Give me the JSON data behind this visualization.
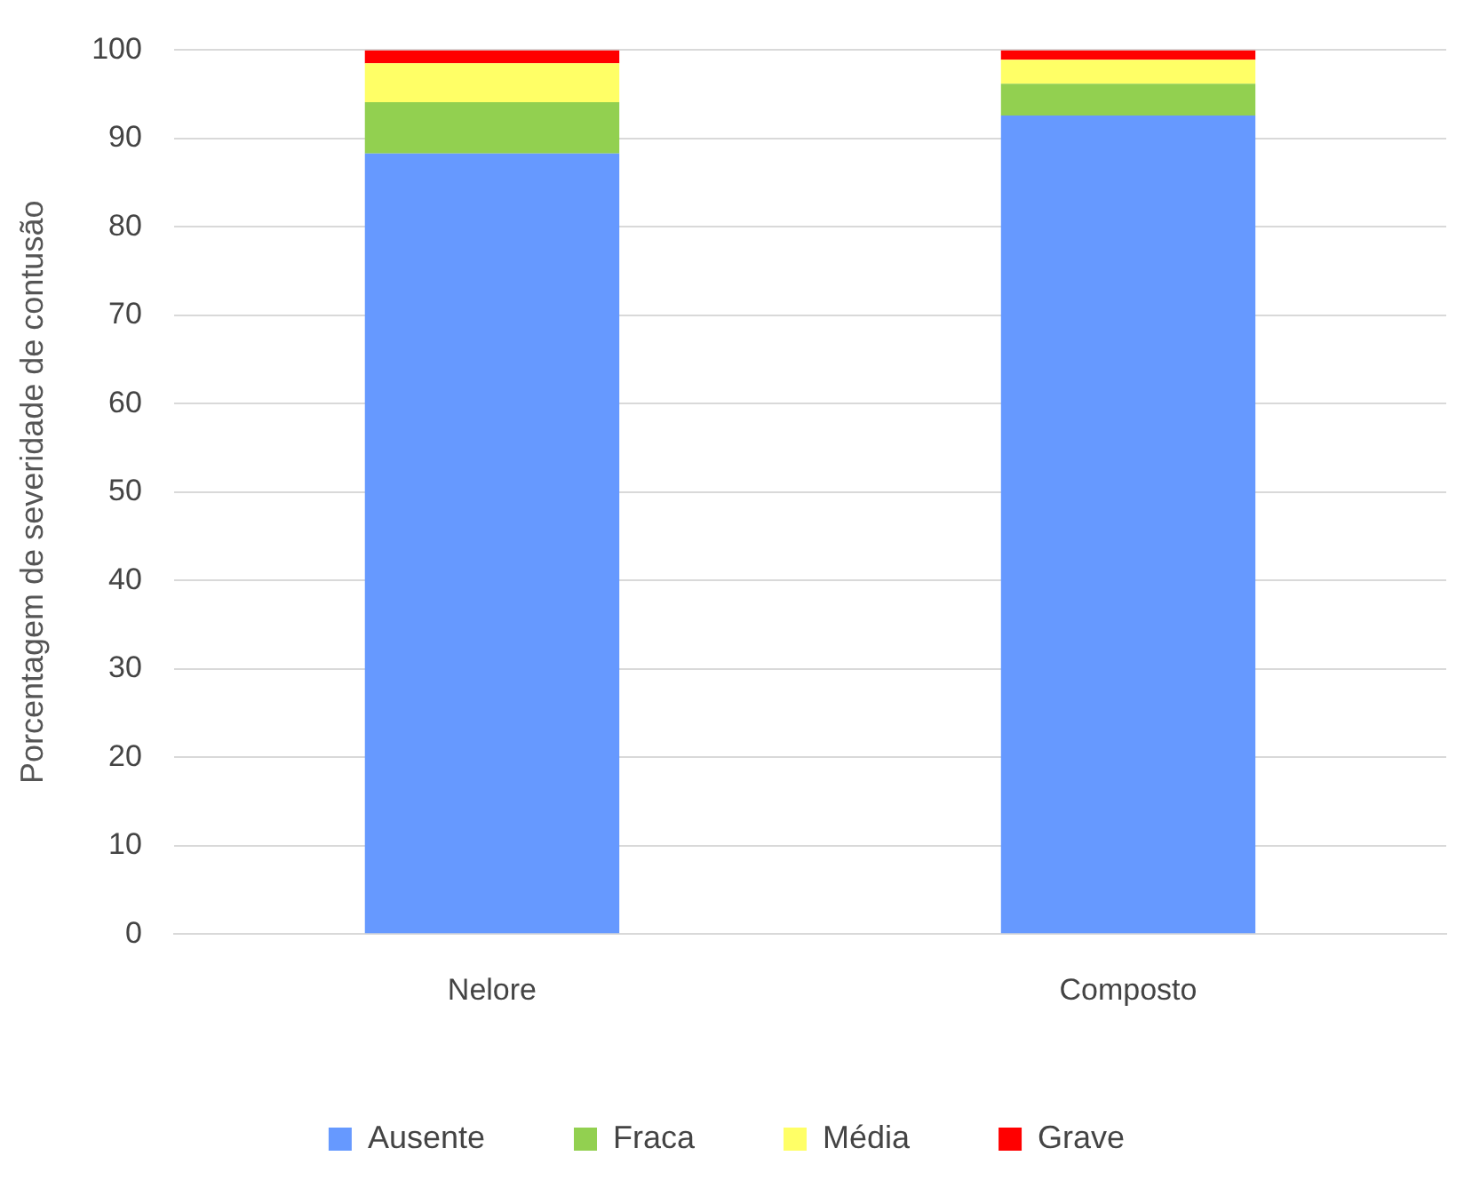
{
  "chart_data": {
    "type": "bar",
    "stacked": true,
    "ylabel": "Porcentagem de severidade de contusão",
    "categories": [
      "Nelore",
      "Composto"
    ],
    "series": [
      {
        "name": "Ausente",
        "color": "#6699ff",
        "values": [
          88.3,
          92.6
        ]
      },
      {
        "name": "Fraca",
        "color": "#92d050",
        "values": [
          5.8,
          3.6
        ]
      },
      {
        "name": "Média",
        "color": "#ffff66",
        "values": [
          4.4,
          2.7
        ]
      },
      {
        "name": "Grave",
        "color": "#ff0000",
        "values": [
          1.5,
          1.1
        ]
      }
    ],
    "ylim": [
      0,
      100
    ],
    "yticks": [
      0,
      10,
      20,
      30,
      40,
      50,
      60,
      70,
      80,
      90,
      100
    ],
    "grid": "y",
    "legend": "bottom"
  }
}
